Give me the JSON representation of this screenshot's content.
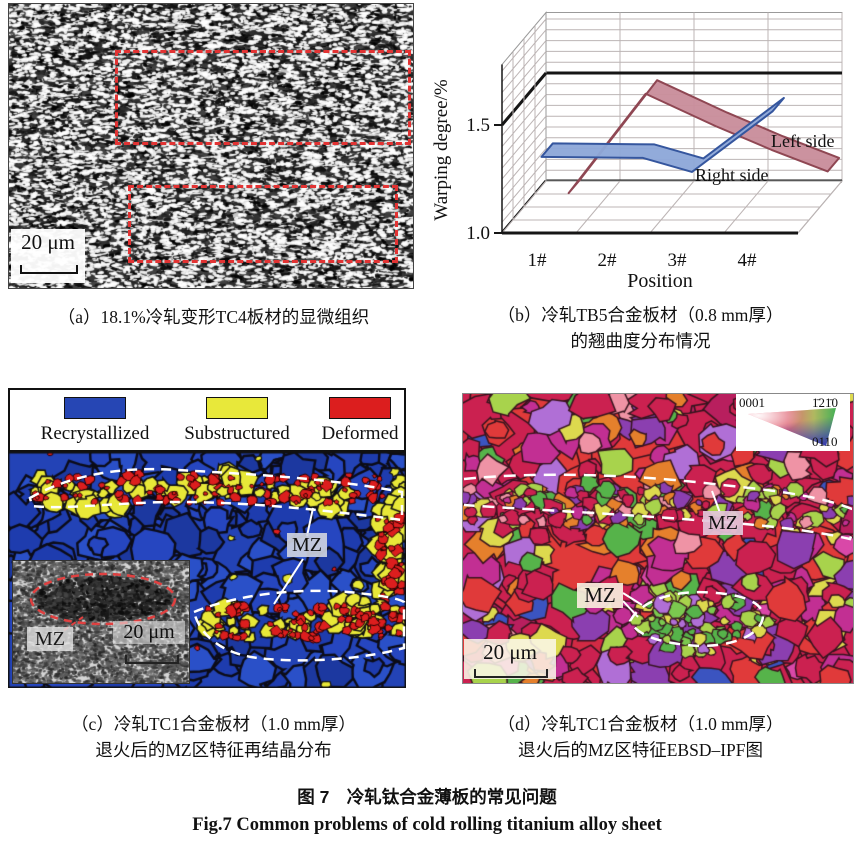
{
  "figure": {
    "caption_zh": "图 7　冷轧钛合金薄板的常见问题",
    "caption_en": "Fig.7  Common problems of cold rolling titanium alloy sheet"
  },
  "panel_a": {
    "caption": "（a）18.1%冷轧变形TC4板材的显微组织",
    "scale_bar": "20 μm"
  },
  "panel_b": {
    "caption_line1": "（b）冷轧TB5合金板材（0.8 mm厚）",
    "caption_line2": "的翘曲度分布情况"
  },
  "chart_data": {
    "type": "3d-ribbon",
    "title": "",
    "xlabel": "Position",
    "ylabel": "Warping degree/%",
    "xticklabels": [
      "1#",
      "2#",
      "3#",
      "4#"
    ],
    "yticks": [
      1.0,
      1.5
    ],
    "ylim": [
      1.0,
      1.78
    ],
    "grid": true,
    "legend_position": "inline-right",
    "series": [
      {
        "name": "Left side",
        "color": "#c98e9b",
        "edge": "#8f4753",
        "x": [
          1.1,
          2.2,
          3.2,
          4.0,
          4.8
        ],
        "values": [
          1.05,
          1.51,
          1.36,
          1.25,
          1.15
        ]
      },
      {
        "name": "Right side",
        "color": "#8ea8d8",
        "edge": "#35569e",
        "x": [
          0.9,
          2.35,
          3.05,
          4.2
        ],
        "values": [
          1.29,
          1.285,
          1.22,
          1.5
        ]
      }
    ]
  },
  "panel_c": {
    "legend": [
      {
        "label": "Recrystallized",
        "color": "#2646b4"
      },
      {
        "label": "Substructured",
        "color": "#e8e83a"
      },
      {
        "label": "Deformed",
        "color": "#dc1e1e"
      }
    ],
    "mz_label": "MZ",
    "inset": {
      "mz_label": "MZ",
      "scale_bar": "20 μm"
    },
    "caption_line1": "（c）冷轧TC1合金板材（1.0 mm厚）",
    "caption_line2": "退火后的MZ区特征再结晶分布"
  },
  "panel_d": {
    "ipf_legend": {
      "top_left": "0001",
      "top_right": "1̄21̄0",
      "bottom_right": "0110"
    },
    "mz_label_1": "MZ",
    "mz_label_2": "MZ",
    "scale_bar": "20 μm",
    "caption_line1": "（d）冷轧TC1合金板材（1.0 mm厚）",
    "caption_line2": "退火后的MZ区特征EBSD–IPF图"
  }
}
